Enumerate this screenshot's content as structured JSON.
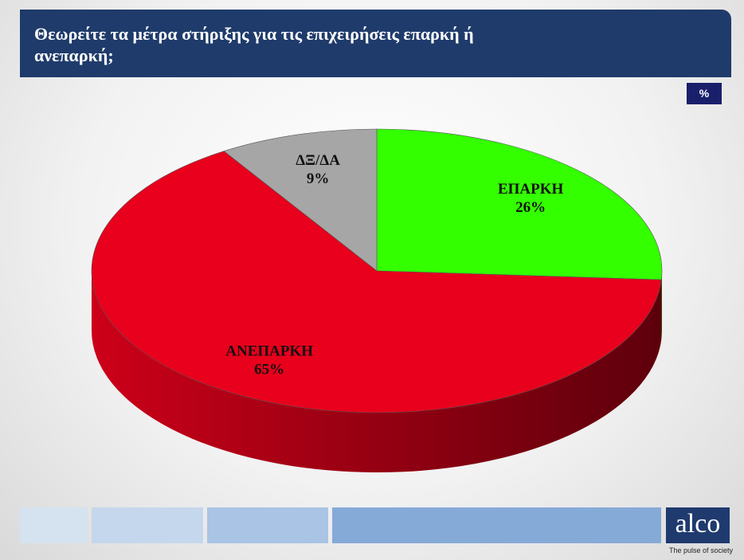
{
  "chart_data": {
    "type": "pie3d",
    "title": "Θεωρείτε τα μέτρα στήριξης για τις επιχειρήσεις επαρκή ή  ανεπαρκή;",
    "unit_label": "%",
    "categories": [
      "ΕΠΑΡΚΗ",
      "ΑΝΕΠΑΡΚΗ",
      "ΔΞ/ΔΑ"
    ],
    "values": [
      26,
      65,
      9
    ],
    "value_labels": [
      "26%",
      "65%",
      "9%"
    ],
    "colors": [
      "#33ff00",
      "#e8001c",
      "#a6a6a6"
    ]
  },
  "footer": {
    "logo": "alco",
    "tagline": "The pulse of society"
  }
}
